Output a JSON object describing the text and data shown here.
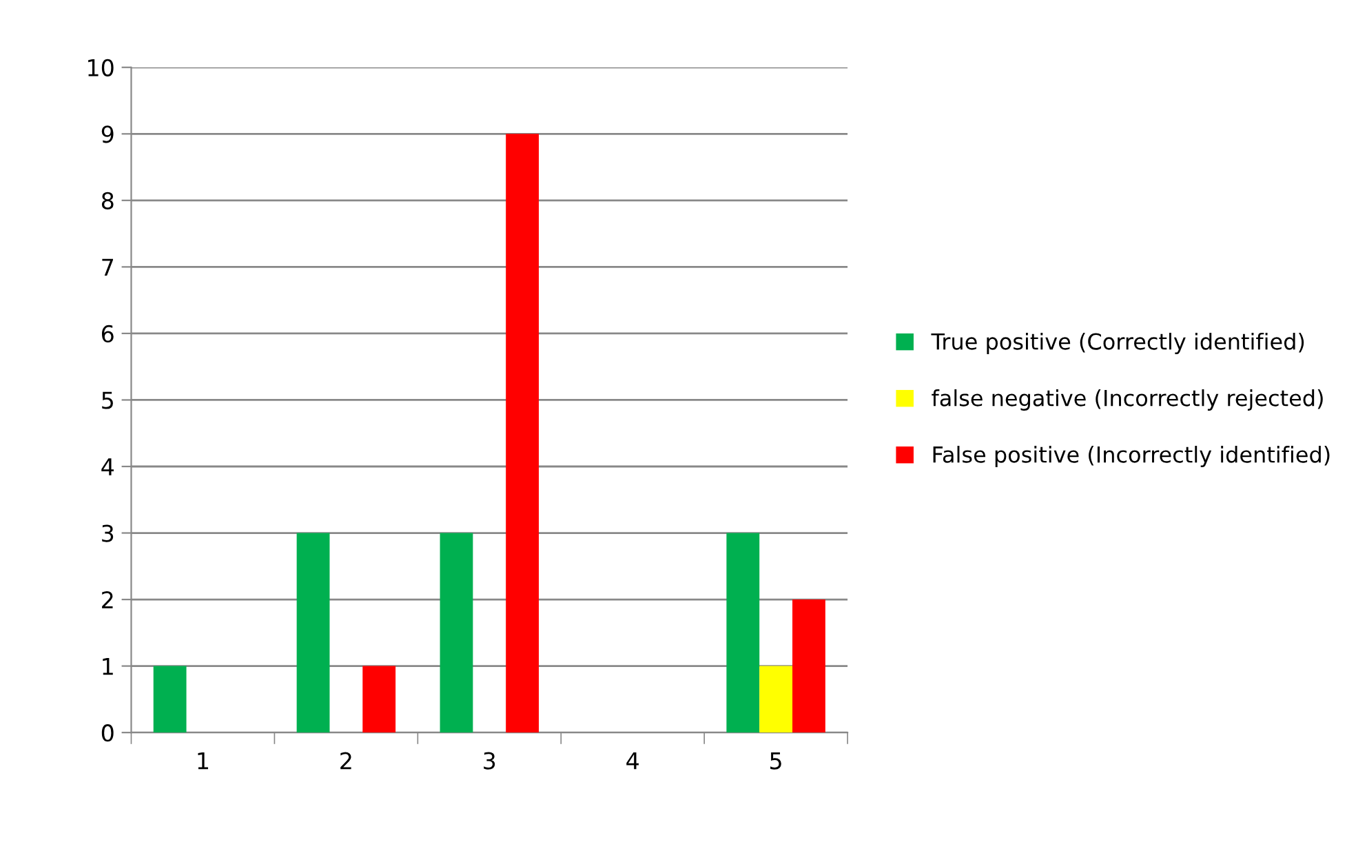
{
  "chart_data": {
    "type": "bar",
    "categories": [
      "1",
      "2",
      "3",
      "4",
      "5"
    ],
    "series": [
      {
        "name": "True positive (Correctly identified)",
        "color": "#00b050",
        "values": [
          1,
          3,
          3,
          0,
          3
        ]
      },
      {
        "name": "false negative (Incorrectly rejected)",
        "color": "#ffff00",
        "values": [
          0,
          0,
          0,
          0,
          1
        ]
      },
      {
        "name": "False positive (Incorrectly identified)",
        "color": "#ff0000",
        "values": [
          0,
          1,
          9,
          0,
          2
        ]
      }
    ],
    "ylim": [
      0,
      10
    ],
    "yticks": [
      0,
      1,
      2,
      3,
      4,
      5,
      6,
      7,
      8,
      9,
      10
    ],
    "grid": "y",
    "legend": "right"
  }
}
